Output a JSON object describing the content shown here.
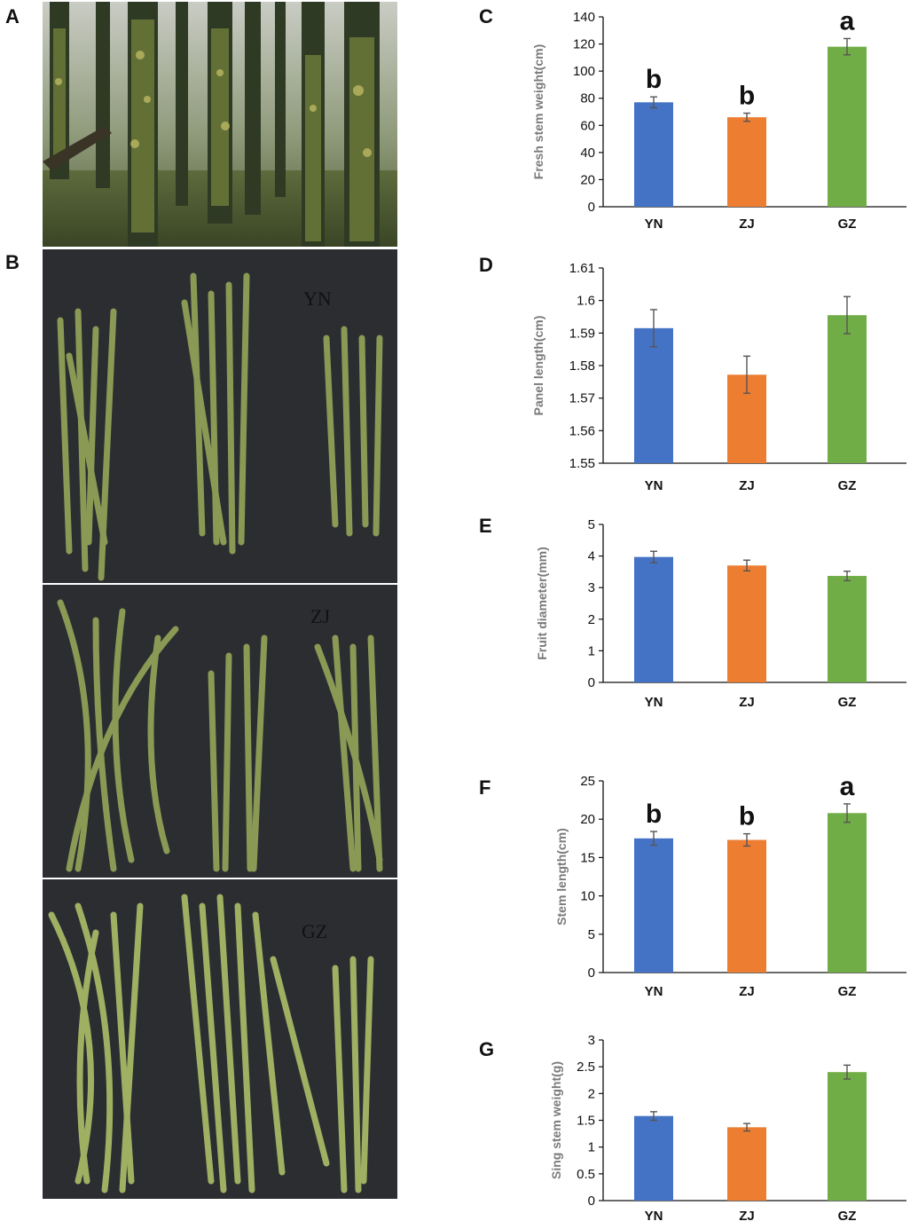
{
  "panels": {
    "A": "A",
    "B": "B",
    "C": "C",
    "D": "D",
    "E": "E",
    "F": "F",
    "G": "G"
  },
  "photo_labels": {
    "yn": "YN",
    "zj": "ZJ",
    "gz": "GZ"
  },
  "colors": {
    "YN": "#4472C4",
    "ZJ": "#ED7D31",
    "GZ": "#70AD47",
    "error_bar": "#555555",
    "forest_dark": "#2f3a24",
    "forest_moss": "#6b7a3a",
    "mat": "#2b2d31",
    "stem": "#8a9a55"
  },
  "chart_data": [
    {
      "type": "bar",
      "panel": "C",
      "categories": [
        "YN",
        "ZJ",
        "GZ"
      ],
      "values": [
        77,
        66,
        118
      ],
      "errors": [
        4,
        3,
        6
      ],
      "significance": [
        "b",
        "b",
        "a"
      ],
      "ylabel": "Fresh stem weight(cm)",
      "ylim": [
        0,
        140
      ],
      "yticks": [
        0,
        20,
        40,
        60,
        80,
        100,
        120,
        140
      ],
      "grid": false
    },
    {
      "type": "bar",
      "panel": "D",
      "categories": [
        "YN",
        "ZJ",
        "GZ"
      ],
      "values": [
        1.5915,
        1.5772,
        1.5955
      ],
      "errors": [
        0.0057,
        0.0057,
        0.0057
      ],
      "significance": [
        "",
        "",
        ""
      ],
      "ylabel": "Panel length(cm)",
      "ylim": [
        1.55,
        1.61
      ],
      "yticks": [
        1.55,
        1.56,
        1.57,
        1.58,
        1.59,
        1.6,
        1.61
      ],
      "grid": false
    },
    {
      "type": "bar",
      "panel": "E",
      "categories": [
        "YN",
        "ZJ",
        "GZ"
      ],
      "values": [
        3.97,
        3.7,
        3.37
      ],
      "errors": [
        0.18,
        0.17,
        0.15
      ],
      "significance": [
        "",
        "",
        ""
      ],
      "ylabel": "Fruit diameter(mm)",
      "ylim": [
        0,
        5
      ],
      "yticks": [
        0,
        1,
        2,
        3,
        4,
        5
      ],
      "grid": false
    },
    {
      "type": "bar",
      "panel": "F",
      "categories": [
        "YN",
        "ZJ",
        "GZ"
      ],
      "values": [
        17.5,
        17.3,
        20.8
      ],
      "errors": [
        0.9,
        0.8,
        1.2
      ],
      "significance": [
        "b",
        "b",
        "a"
      ],
      "ylabel": "Stem length(cm)",
      "ylim": [
        0,
        25
      ],
      "yticks": [
        0,
        5,
        10,
        15,
        20,
        25
      ],
      "grid": false
    },
    {
      "type": "bar",
      "panel": "G",
      "categories": [
        "YN",
        "ZJ",
        "GZ"
      ],
      "values": [
        1.58,
        1.37,
        2.4
      ],
      "errors": [
        0.08,
        0.07,
        0.13
      ],
      "significance": [
        "",
        "",
        ""
      ],
      "ylabel": "Sing stem weight(g)",
      "ylim": [
        0,
        3
      ],
      "yticks": [
        0,
        0.5,
        1,
        1.5,
        2,
        2.5,
        3
      ],
      "grid": false
    }
  ]
}
